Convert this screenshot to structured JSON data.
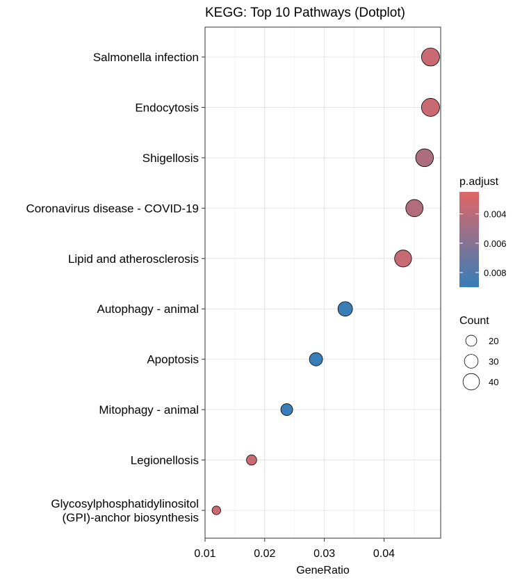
{
  "chart_data": {
    "type": "scatter",
    "title": "KEGG: Top 10 Pathways (Dotplot)",
    "xlabel": "GeneRatio",
    "ylabel": "",
    "xlim": [
      0.01,
      0.0495
    ],
    "xticks": [
      0.01,
      0.02,
      0.03,
      0.04
    ],
    "xtick_labels": [
      "0.01",
      "0.02",
      "0.03",
      "0.04"
    ],
    "grid": true,
    "points": [
      {
        "pathway": "Salmonella infection",
        "gene_ratio": 0.0478,
        "count": 46,
        "p_adjust": 0.0034
      },
      {
        "pathway": "Endocytosis",
        "gene_ratio": 0.0478,
        "count": 46,
        "p_adjust": 0.0034
      },
      {
        "pathway": "Shigellosis",
        "gene_ratio": 0.0468,
        "count": 45,
        "p_adjust": 0.0045
      },
      {
        "pathway": "Coronavirus disease - COVID-19",
        "gene_ratio": 0.0451,
        "count": 43,
        "p_adjust": 0.0043
      },
      {
        "pathway": "Lipid and atherosclerosis",
        "gene_ratio": 0.0432,
        "count": 42,
        "p_adjust": 0.0035
      },
      {
        "pathway": "Autophagy - animal",
        "gene_ratio": 0.0335,
        "count": 33,
        "p_adjust": 0.0089
      },
      {
        "pathway": "Apoptosis",
        "gene_ratio": 0.0286,
        "count": 28,
        "p_adjust": 0.0089
      },
      {
        "pathway": "Mitophagy - animal",
        "gene_ratio": 0.0237,
        "count": 23,
        "p_adjust": 0.0089
      },
      {
        "pathway": "Legionellosis",
        "gene_ratio": 0.0178,
        "count": 17,
        "p_adjust": 0.0034
      },
      {
        "pathway": "Glycosylphosphatidylinositol\n(GPI)-anchor biosynthesis",
        "gene_ratio": 0.0119,
        "count": 11,
        "p_adjust": 0.0034
      }
    ],
    "color_legend": {
      "title": "p.adjust",
      "range": [
        0.0025,
        0.009
      ],
      "ticks": [
        0.004,
        0.006,
        0.008
      ],
      "tick_labels": [
        "0.004",
        "0.006",
        "0.008"
      ],
      "low_color": "#e06666",
      "high_color": "#377eb8"
    },
    "size_legend": {
      "title": "Count",
      "values": [
        20,
        30,
        40
      ],
      "labels": [
        "20",
        "30",
        "40"
      ]
    },
    "point_outline_color": "#000000"
  }
}
